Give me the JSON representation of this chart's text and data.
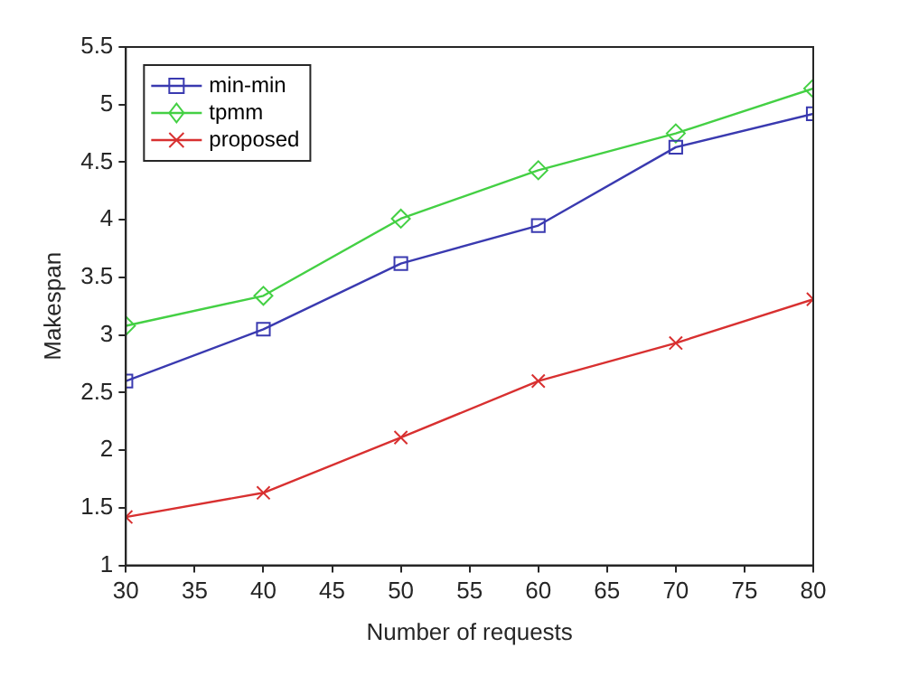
{
  "chart_data": {
    "type": "line",
    "xlabel": "Number of requests",
    "ylabel": "Makespan",
    "x": [
      30,
      40,
      50,
      60,
      70,
      80
    ],
    "xlim": [
      30,
      80
    ],
    "xticks": [
      30,
      35,
      40,
      45,
      50,
      55,
      60,
      65,
      70,
      75,
      80
    ],
    "ylim": [
      1,
      5.5
    ],
    "yticks": [
      1,
      1.5,
      2,
      2.5,
      3,
      3.5,
      4,
      4.5,
      5,
      5.5
    ],
    "grid": false,
    "legend": "top left",
    "line_style": "solid",
    "series": [
      {
        "name": "min-min",
        "color": "#3a3ab0",
        "marker": "square",
        "values": [
          2.6,
          3.05,
          3.62,
          3.95,
          4.63,
          4.92
        ]
      },
      {
        "name": "tpmm",
        "color": "#44d044",
        "marker": "diamond",
        "values": [
          3.08,
          3.34,
          4.01,
          4.43,
          4.75,
          5.14
        ]
      },
      {
        "name": "proposed",
        "color": "#d83030",
        "marker": "cross",
        "values": [
          1.42,
          1.63,
          2.11,
          2.6,
          2.93,
          3.31
        ]
      }
    ]
  }
}
